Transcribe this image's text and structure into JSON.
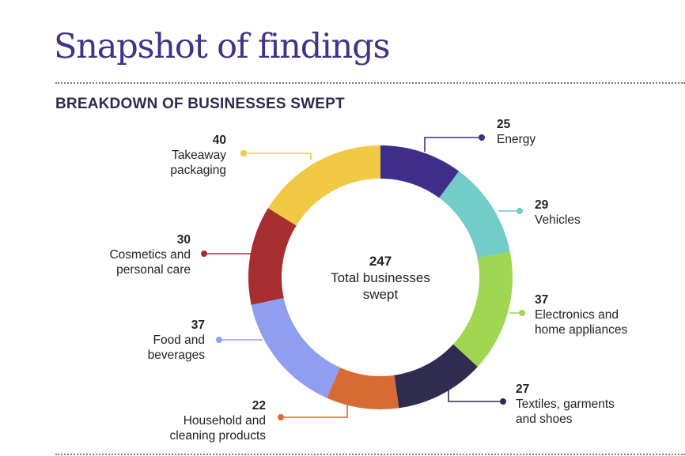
{
  "header": {
    "title": "Snapshot of findings"
  },
  "chart_data": {
    "type": "pie",
    "variant": "donut",
    "title": "BREAKDOWN OF BUSINESSES SWEPT",
    "center_value": "247",
    "center_label": "Total businesses\nswept",
    "slices": [
      {
        "label": "Energy",
        "value": 25,
        "color": "#3f2d8c"
      },
      {
        "label": "Vehicles",
        "value": 29,
        "color": "#72ccc7"
      },
      {
        "label": "Electronics and\nhome appliances",
        "value": 37,
        "color": "#a1d652"
      },
      {
        "label": "Textiles, garments\nand shoes",
        "value": 27,
        "color": "#302c4f"
      },
      {
        "label": "Household and\ncleaning products",
        "value": 22,
        "color": "#d86b34"
      },
      {
        "label": "Food and\nbeverages",
        "value": 37,
        "color": "#8f9ef0"
      },
      {
        "label": "Cosmetics and\npersonal care",
        "value": 30,
        "color": "#a62e31"
      },
      {
        "label": "Takeaway\npackaging",
        "value": 40,
        "color": "#f2c944"
      }
    ]
  }
}
